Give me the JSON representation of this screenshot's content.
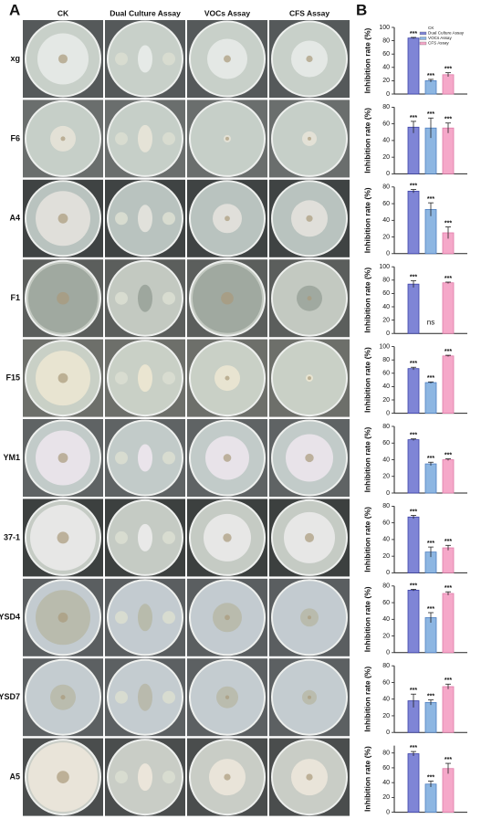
{
  "panel_a": {
    "label": "A",
    "columns": [
      "CK",
      "Dual Culture Assay",
      "VOCs Assay",
      "CFS Assay"
    ],
    "rows": [
      "xg",
      "F6",
      "A4",
      "F1",
      "F15",
      "YM1",
      "37-1",
      "YSD4",
      "YSD7",
      "A5"
    ]
  },
  "panel_b_label": "B",
  "chart_data": [
    {
      "type": "bar",
      "y_label": "Inhibition rate (%)",
      "ylim": [
        0,
        100
      ],
      "yticks": [
        0,
        20,
        40,
        60,
        80,
        100
      ],
      "legend": "upper right",
      "series": [
        {
          "name": "CK",
          "color": "#ffffff",
          "values": [
            0
          ]
        },
        {
          "name": "Dual Culture Assay",
          "color": "#7f85d6",
          "values": [
            84
          ],
          "errors": [
            1
          ],
          "significance": [
            "***"
          ]
        },
        {
          "name": "VOCs Assay",
          "color": "#8db6e2",
          "values": [
            20
          ],
          "errors": [
            2
          ],
          "significance": [
            "***"
          ]
        },
        {
          "name": "CFS Assay",
          "color": "#f5a8c9",
          "values": [
            29
          ],
          "errors": [
            3
          ],
          "significance": [
            "***"
          ]
        }
      ]
    },
    {
      "type": "bar",
      "y_label": "Inhibition rate (%)",
      "ylim": [
        0,
        80
      ],
      "yticks": [
        0,
        20,
        40,
        60,
        80
      ],
      "series": [
        {
          "name": "CK",
          "color": "#ffffff",
          "values": [
            0
          ]
        },
        {
          "name": "Dual Culture Assay",
          "color": "#7f85d6",
          "values": [
            56
          ],
          "errors": [
            7
          ],
          "significance": [
            "***"
          ]
        },
        {
          "name": "VOCs Assay",
          "color": "#8db6e2",
          "values": [
            55
          ],
          "errors": [
            12
          ],
          "significance": [
            "***"
          ]
        },
        {
          "name": "CFS Assay",
          "color": "#f5a8c9",
          "values": [
            55
          ],
          "errors": [
            6
          ],
          "significance": [
            "***"
          ]
        }
      ]
    },
    {
      "type": "bar",
      "y_label": "Inhibition rate (%)",
      "ylim": [
        0,
        80
      ],
      "yticks": [
        0,
        20,
        40,
        60,
        80
      ],
      "series": [
        {
          "name": "CK",
          "color": "#ffffff",
          "values": [
            0
          ]
        },
        {
          "name": "Dual Culture Assay",
          "color": "#7f85d6",
          "values": [
            75
          ],
          "errors": [
            2
          ],
          "significance": [
            "***"
          ]
        },
        {
          "name": "VOCs Assay",
          "color": "#8db6e2",
          "values": [
            53
          ],
          "errors": [
            8
          ],
          "significance": [
            "***"
          ]
        },
        {
          "name": "CFS Assay",
          "color": "#f5a8c9",
          "values": [
            25
          ],
          "errors": [
            7
          ],
          "significance": [
            "***"
          ]
        }
      ]
    },
    {
      "type": "bar",
      "y_label": "Inhibition rate (%)",
      "ylim": [
        0,
        100
      ],
      "yticks": [
        0,
        20,
        40,
        60,
        80,
        100
      ],
      "series": [
        {
          "name": "CK",
          "color": "#ffffff",
          "values": [
            0
          ]
        },
        {
          "name": "Dual Culture Assay",
          "color": "#7f85d6",
          "values": [
            74
          ],
          "errors": [
            5
          ],
          "significance": [
            "***"
          ]
        },
        {
          "name": "VOCs Assay",
          "color": "#8db6e2",
          "values": [
            0
          ],
          "significance": [
            "ns"
          ]
        },
        {
          "name": "CFS Assay",
          "color": "#f5a8c9",
          "values": [
            76
          ],
          "errors": [
            1
          ],
          "significance": [
            "***"
          ]
        }
      ]
    },
    {
      "type": "bar",
      "y_label": "Inhibition rate (%)",
      "ylim": [
        0,
        100
      ],
      "yticks": [
        0,
        20,
        40,
        60,
        80,
        100
      ],
      "series": [
        {
          "name": "CK",
          "color": "#ffffff",
          "values": [
            0
          ]
        },
        {
          "name": "Dual Culture Assay",
          "color": "#7f85d6",
          "values": [
            67
          ],
          "errors": [
            2
          ],
          "significance": [
            "***"
          ]
        },
        {
          "name": "VOCs Assay",
          "color": "#8db6e2",
          "values": [
            46
          ],
          "errors": [
            1
          ],
          "significance": [
            "***"
          ]
        },
        {
          "name": "CFS Assay",
          "color": "#f5a8c9",
          "values": [
            86
          ],
          "errors": [
            1
          ],
          "significance": [
            "***"
          ]
        }
      ]
    },
    {
      "type": "bar",
      "y_label": "Inhibition rate (%)",
      "ylim": [
        0,
        80
      ],
      "yticks": [
        0,
        20,
        40,
        60,
        80
      ],
      "series": [
        {
          "name": "CK",
          "color": "#ffffff",
          "values": [
            0
          ]
        },
        {
          "name": "Dual Culture Assay",
          "color": "#7f85d6",
          "values": [
            64
          ],
          "errors": [
            1
          ],
          "significance": [
            "***"
          ]
        },
        {
          "name": "VOCs Assay",
          "color": "#8db6e2",
          "values": [
            35
          ],
          "errors": [
            2
          ],
          "significance": [
            "***"
          ]
        },
        {
          "name": "CFS Assay",
          "color": "#f5a8c9",
          "values": [
            40
          ],
          "errors": [
            1
          ],
          "significance": [
            "***"
          ]
        }
      ]
    },
    {
      "type": "bar",
      "y_label": "Inhibition rate (%)",
      "ylim": [
        0,
        80
      ],
      "yticks": [
        0,
        20,
        40,
        60,
        80
      ],
      "series": [
        {
          "name": "CK",
          "color": "#ffffff",
          "values": [
            0
          ]
        },
        {
          "name": "Dual Culture Assay",
          "color": "#7f85d6",
          "values": [
            67
          ],
          "errors": [
            2
          ],
          "significance": [
            "***"
          ]
        },
        {
          "name": "VOCs Assay",
          "color": "#8db6e2",
          "values": [
            25
          ],
          "errors": [
            6
          ],
          "significance": [
            "***"
          ]
        },
        {
          "name": "CFS Assay",
          "color": "#f5a8c9",
          "values": [
            30
          ],
          "errors": [
            3
          ],
          "significance": [
            "***"
          ]
        }
      ]
    },
    {
      "type": "bar",
      "y_label": "Inhibition rate (%)",
      "ylim": [
        0,
        80
      ],
      "yticks": [
        0,
        20,
        40,
        60,
        80
      ],
      "series": [
        {
          "name": "CK",
          "color": "#ffffff",
          "values": [
            0
          ]
        },
        {
          "name": "Dual Culture Assay",
          "color": "#7f85d6",
          "values": [
            75
          ],
          "errors": [
            1
          ],
          "significance": [
            "***"
          ]
        },
        {
          "name": "VOCs Assay",
          "color": "#8db6e2",
          "values": [
            42
          ],
          "errors": [
            6
          ],
          "significance": [
            "***"
          ]
        },
        {
          "name": "CFS Assay",
          "color": "#f5a8c9",
          "values": [
            71
          ],
          "errors": [
            2
          ],
          "significance": [
            "***"
          ]
        }
      ]
    },
    {
      "type": "bar",
      "y_label": "Inhibition rate (%)",
      "ylim": [
        0,
        80
      ],
      "yticks": [
        0,
        20,
        40,
        60,
        80
      ],
      "series": [
        {
          "name": "CK",
          "color": "#ffffff",
          "values": [
            0
          ]
        },
        {
          "name": "Dual Culture Assay",
          "color": "#7f85d6",
          "values": [
            38
          ],
          "errors": [
            8
          ],
          "significance": [
            "***"
          ]
        },
        {
          "name": "VOCs Assay",
          "color": "#8db6e2",
          "values": [
            36
          ],
          "errors": [
            3
          ],
          "significance": [
            "***"
          ]
        },
        {
          "name": "CFS Assay",
          "color": "#f5a8c9",
          "values": [
            55
          ],
          "errors": [
            3
          ],
          "significance": [
            "***"
          ]
        }
      ]
    },
    {
      "type": "bar",
      "y_label": "Inhibition rate (%)",
      "ylim": [
        0,
        90
      ],
      "yticks": [
        0,
        20,
        40,
        60,
        80
      ],
      "series": [
        {
          "name": "CK",
          "color": "#ffffff",
          "values": [
            0
          ]
        },
        {
          "name": "Dual Culture Assay",
          "color": "#7f85d6",
          "values": [
            79
          ],
          "errors": [
            3
          ],
          "significance": [
            "***"
          ]
        },
        {
          "name": "VOCs Assay",
          "color": "#8db6e2",
          "values": [
            38
          ],
          "errors": [
            4
          ],
          "significance": [
            "***"
          ]
        },
        {
          "name": "CFS Assay",
          "color": "#f5a8c9",
          "values": [
            59
          ],
          "errors": [
            7
          ],
          "significance": [
            "***"
          ]
        }
      ]
    }
  ]
}
